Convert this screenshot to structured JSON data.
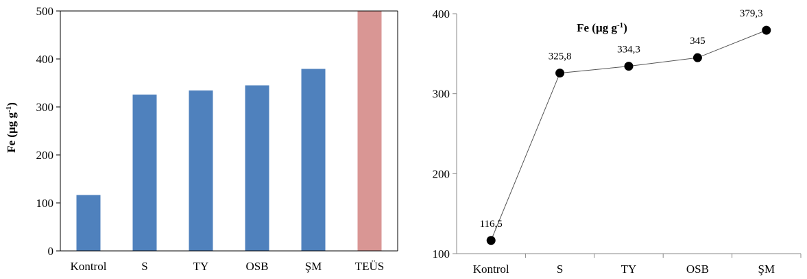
{
  "chart_data": [
    {
      "type": "bar",
      "categories": [
        "Kontrol",
        "S",
        "TY",
        "OSB",
        "ŞM",
        "TEÜS"
      ],
      "values": [
        116.5,
        325.8,
        334.3,
        345,
        379.3,
        500
      ],
      "colors": [
        "#4f81bd",
        "#4f81bd",
        "#4f81bd",
        "#4f81bd",
        "#4f81bd",
        "#d99694"
      ],
      "ylabel_main": "Fe (µg g",
      "ylabel_sup": "-1",
      "ylabel_tail": ")",
      "ylim": [
        0,
        500
      ],
      "yticks": [
        "0",
        "100",
        "200",
        "300",
        "400",
        "500"
      ],
      "grid": false,
      "legend": "none"
    },
    {
      "type": "line",
      "categories": [
        "Kontrol",
        "S",
        "TY",
        "OSB",
        "ŞM"
      ],
      "values": [
        116.5,
        325.8,
        334.3,
        345,
        379.3
      ],
      "data_labels": [
        "116,5",
        "325,8",
        "334,3",
        "345",
        "379,3"
      ],
      "title_main": "Fe (µg g",
      "title_sup": "-1",
      "title_tail": ")",
      "ylim": [
        100,
        400
      ],
      "yticks": [
        "100",
        "200",
        "300",
        "400"
      ],
      "line_color": "#555555",
      "marker_color": "#000000",
      "grid": false,
      "legend": "none"
    }
  ]
}
